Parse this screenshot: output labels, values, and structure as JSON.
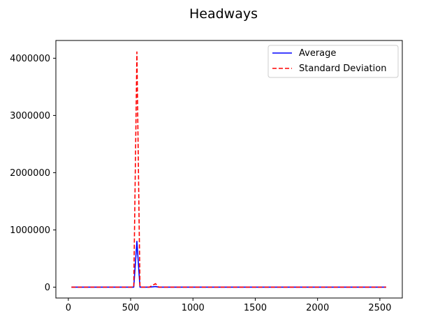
{
  "chart_data": {
    "type": "line",
    "title": "Headways",
    "xlabel": "",
    "ylabel": "",
    "xlim": [
      -100,
      2680
    ],
    "ylim": [
      -190000,
      4310000
    ],
    "xticks": [
      0,
      500,
      1000,
      1500,
      2000,
      2500
    ],
    "xtick_labels": [
      "0",
      "500",
      "1000",
      "1500",
      "2000",
      "2500"
    ],
    "yticks": [
      0,
      1000000,
      2000000,
      3000000,
      4000000
    ],
    "ytick_labels": [
      "0",
      "1000000",
      "2000000",
      "3000000",
      "4000000"
    ],
    "grid": false,
    "legend_placement": "top-right",
    "series": [
      {
        "name": "Average",
        "color": "#0000ff",
        "style": "solid",
        "x": [
          25,
          100,
          200,
          300,
          400,
          500,
          525,
          550,
          575,
          600,
          650,
          700,
          725,
          800,
          1000,
          1500,
          2000,
          2550
        ],
        "y": [
          0,
          0,
          0,
          0,
          0,
          0,
          0,
          800000,
          0,
          0,
          0,
          10000,
          0,
          0,
          0,
          0,
          0,
          0
        ]
      },
      {
        "name": "Standard Deviation",
        "color": "#ff0000",
        "style": "dashed",
        "x": [
          25,
          100,
          200,
          300,
          400,
          500,
          525,
          550,
          575,
          600,
          650,
          700,
          725,
          800,
          1000,
          1500,
          2000,
          2550
        ],
        "y": [
          0,
          0,
          0,
          0,
          0,
          0,
          0,
          4110000,
          0,
          0,
          0,
          60000,
          0,
          0,
          0,
          0,
          0,
          0
        ]
      }
    ]
  }
}
